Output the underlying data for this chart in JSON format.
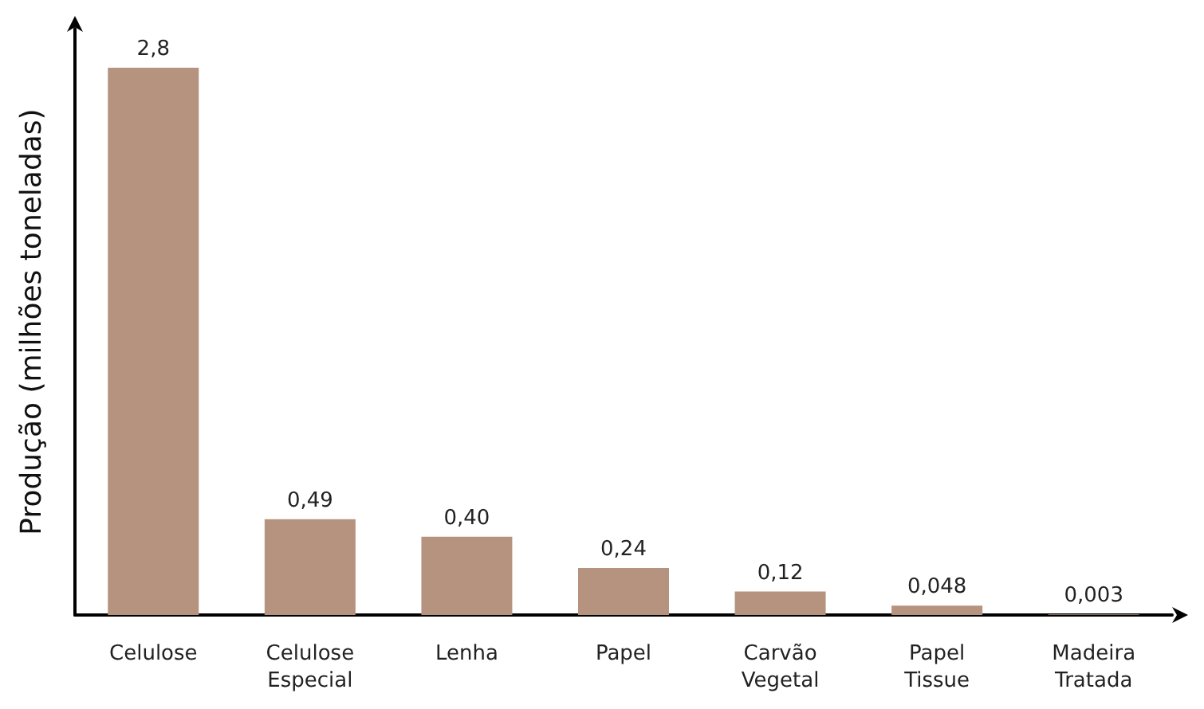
{
  "chart_data": {
    "type": "bar",
    "ylabel": "Produção (milhões toneladas)",
    "categories": [
      "Celulose",
      "Celulose Especial",
      "Lenha",
      "Papel",
      "Carvão Vegetal",
      "Papel Tissue",
      "Madeira Tratada"
    ],
    "values": [
      2.8,
      0.49,
      0.4,
      0.24,
      0.12,
      0.048,
      0.003
    ],
    "value_labels": [
      "2,8",
      "0,49",
      "0,40",
      "0,24",
      "0,12",
      "0,048",
      "0,003"
    ],
    "color": "#b5937e",
    "tick_labels": "x",
    "grid": false
  }
}
